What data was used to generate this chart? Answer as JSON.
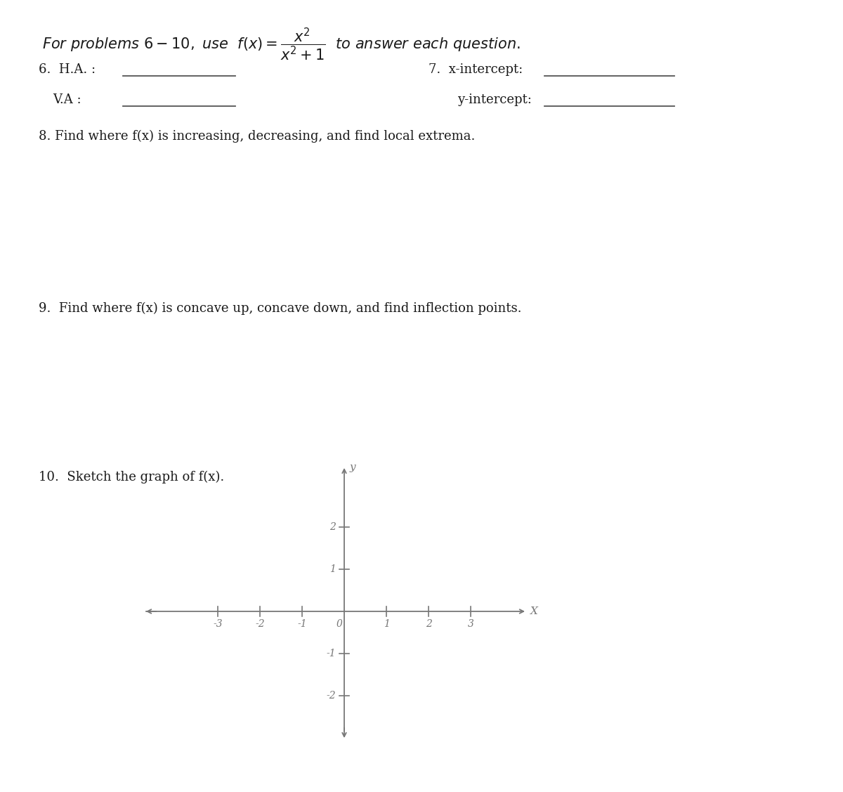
{
  "background_color": "#ffffff",
  "text_color": "#1a1a1a",
  "line_color": "#555555",
  "axis_color": "#777777",
  "fontsize_title": 15,
  "fontsize_body": 13,
  "fontsize_axis": 11,
  "q6_label": "6.  H.A. :",
  "q6_va_label": "    V.A :",
  "q7_label": "7.  x-intercept:",
  "q7_yi_label": "y-intercept:",
  "q8_label": "8. Find where f(x) is increasing, decreasing, and find local extrema.",
  "q9_label": "9.  Find where f(x) is concave up, concave down, and find inflection points.",
  "q10_label": "10.  Sketch the graph of f(x).",
  "x_ticks": [
    -3,
    -2,
    -1,
    1,
    2,
    3
  ],
  "y_ticks": [
    2,
    1,
    -1,
    -2
  ],
  "x_label": "X",
  "y_label": "y"
}
